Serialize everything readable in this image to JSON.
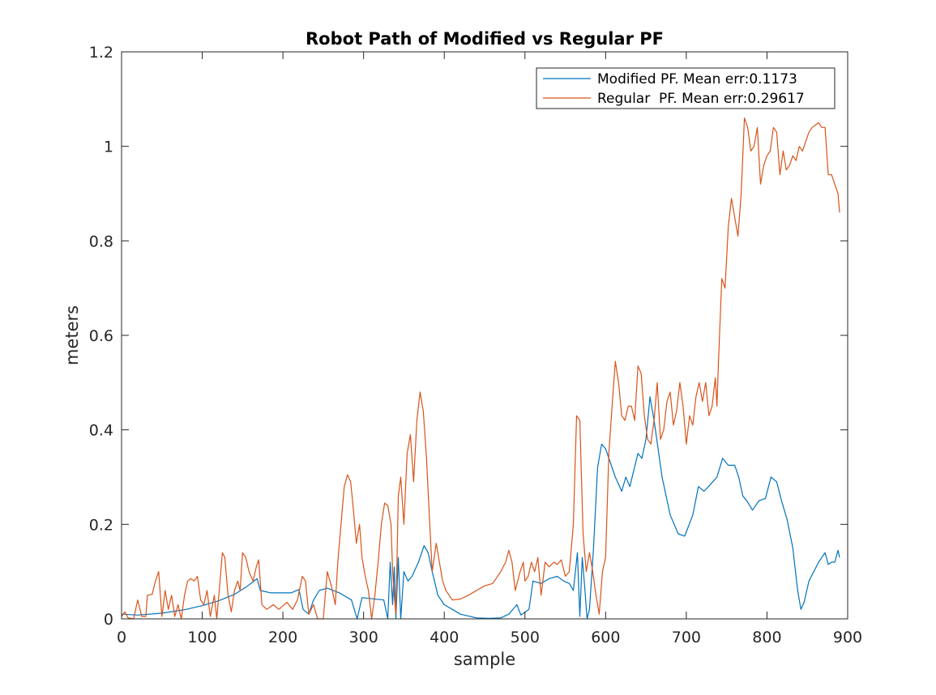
{
  "chart_data": {
    "type": "line",
    "title": "Robot Path of Modified vs Regular PF",
    "xlabel": "sample",
    "ylabel": "meters",
    "xlim": [
      0,
      900
    ],
    "ylim": [
      0,
      1.2
    ],
    "xticks": [
      0,
      100,
      200,
      300,
      400,
      500,
      600,
      700,
      800,
      900
    ],
    "yticks": [
      0,
      0.2,
      0.4,
      0.6,
      0.8,
      1,
      1.2
    ],
    "ytick_labels": [
      "0",
      "0.2",
      "0.4",
      "0.6",
      "0.8",
      "1",
      "1.2"
    ],
    "grid": false,
    "legend_position": "top-right",
    "series": [
      {
        "name": "Modified PF. Mean err:0.1173",
        "color": "#0072BD",
        "points": [
          [
            0,
            0.01
          ],
          [
            20,
            0.008
          ],
          [
            50,
            0.012
          ],
          [
            80,
            0.02
          ],
          [
            100,
            0.028
          ],
          [
            120,
            0.038
          ],
          [
            140,
            0.052
          ],
          [
            155,
            0.068
          ],
          [
            168,
            0.085
          ],
          [
            172,
            0.06
          ],
          [
            185,
            0.055
          ],
          [
            210,
            0.055
          ],
          [
            220,
            0.062
          ],
          [
            225,
            0.02
          ],
          [
            232,
            0.01
          ],
          [
            238,
            0.04
          ],
          [
            245,
            0.06
          ],
          [
            255,
            0.065
          ],
          [
            270,
            0.055
          ],
          [
            285,
            0.04
          ],
          [
            292,
            0.0
          ],
          [
            298,
            0.045
          ],
          [
            325,
            0.04
          ],
          [
            330,
            0.0
          ],
          [
            333,
            0.12
          ],
          [
            336,
            0.03
          ],
          [
            338,
            0.11
          ],
          [
            340,
            0.0
          ],
          [
            343,
            0.13
          ],
          [
            346,
            0.0
          ],
          [
            350,
            0.1
          ],
          [
            355,
            0.08
          ],
          [
            360,
            0.09
          ],
          [
            368,
            0.12
          ],
          [
            375,
            0.155
          ],
          [
            380,
            0.14
          ],
          [
            385,
            0.1
          ],
          [
            392,
            0.05
          ],
          [
            400,
            0.03
          ],
          [
            410,
            0.02
          ],
          [
            420,
            0.01
          ],
          [
            440,
            0.002
          ],
          [
            455,
            0.001
          ],
          [
            470,
            0.002
          ],
          [
            480,
            0.01
          ],
          [
            490,
            0.03
          ],
          [
            495,
            0.008
          ],
          [
            505,
            0.02
          ],
          [
            510,
            0.08
          ],
          [
            520,
            0.075
          ],
          [
            530,
            0.085
          ],
          [
            540,
            0.09
          ],
          [
            548,
            0.08
          ],
          [
            555,
            0.075
          ],
          [
            560,
            0.06
          ],
          [
            565,
            0.14
          ],
          [
            568,
            0.005
          ],
          [
            571,
            0.13
          ],
          [
            574,
            0.07
          ],
          [
            577,
            0.0
          ],
          [
            580,
            0.02
          ],
          [
            585,
            0.15
          ],
          [
            590,
            0.32
          ],
          [
            595,
            0.37
          ],
          [
            600,
            0.36
          ],
          [
            606,
            0.33
          ],
          [
            612,
            0.3
          ],
          [
            620,
            0.27
          ],
          [
            625,
            0.3
          ],
          [
            630,
            0.28
          ],
          [
            640,
            0.35
          ],
          [
            645,
            0.34
          ],
          [
            650,
            0.38
          ],
          [
            655,
            0.47
          ],
          [
            660,
            0.42
          ],
          [
            670,
            0.3
          ],
          [
            680,
            0.22
          ],
          [
            690,
            0.18
          ],
          [
            698,
            0.175
          ],
          [
            708,
            0.22
          ],
          [
            715,
            0.28
          ],
          [
            722,
            0.27
          ],
          [
            730,
            0.285
          ],
          [
            738,
            0.3
          ],
          [
            745,
            0.34
          ],
          [
            752,
            0.325
          ],
          [
            760,
            0.325
          ],
          [
            765,
            0.3
          ],
          [
            770,
            0.26
          ],
          [
            775,
            0.25
          ],
          [
            782,
            0.23
          ],
          [
            790,
            0.25
          ],
          [
            798,
            0.255
          ],
          [
            805,
            0.3
          ],
          [
            812,
            0.29
          ],
          [
            818,
            0.25
          ],
          [
            825,
            0.21
          ],
          [
            832,
            0.15
          ],
          [
            838,
            0.06
          ],
          [
            842,
            0.02
          ],
          [
            846,
            0.035
          ],
          [
            852,
            0.08
          ],
          [
            858,
            0.1
          ],
          [
            864,
            0.12
          ],
          [
            868,
            0.13
          ],
          [
            872,
            0.14
          ],
          [
            876,
            0.115
          ],
          [
            880,
            0.12
          ],
          [
            884,
            0.12
          ],
          [
            888,
            0.145
          ],
          [
            890,
            0.13
          ]
        ]
      },
      {
        "name": "Regular  PF. Mean err:0.29617",
        "color": "#D95319",
        "points": [
          [
            0,
            0.005
          ],
          [
            4,
            0.015
          ],
          [
            8,
            0.002
          ],
          [
            15,
            0.0
          ],
          [
            20,
            0.04
          ],
          [
            25,
            0.005
          ],
          [
            30,
            0.005
          ],
          [
            32,
            0.05
          ],
          [
            38,
            0.052
          ],
          [
            42,
            0.08
          ],
          [
            46,
            0.1
          ],
          [
            50,
            0.005
          ],
          [
            54,
            0.06
          ],
          [
            58,
            0.02
          ],
          [
            62,
            0.05
          ],
          [
            66,
            0.005
          ],
          [
            70,
            0.03
          ],
          [
            74,
            0.0
          ],
          [
            78,
            0.05
          ],
          [
            82,
            0.08
          ],
          [
            86,
            0.085
          ],
          [
            90,
            0.08
          ],
          [
            94,
            0.09
          ],
          [
            98,
            0.04
          ],
          [
            102,
            0.03
          ],
          [
            106,
            0.06
          ],
          [
            110,
            0.005
          ],
          [
            115,
            0.05
          ],
          [
            118,
            0.0
          ],
          [
            122,
            0.08
          ],
          [
            125,
            0.14
          ],
          [
            128,
            0.13
          ],
          [
            132,
            0.05
          ],
          [
            136,
            0.015
          ],
          [
            140,
            0.06
          ],
          [
            144,
            0.08
          ],
          [
            147,
            0.06
          ],
          [
            150,
            0.14
          ],
          [
            154,
            0.13
          ],
          [
            158,
            0.1
          ],
          [
            163,
            0.08
          ],
          [
            167,
            0.11
          ],
          [
            170,
            0.125
          ],
          [
            174,
            0.03
          ],
          [
            180,
            0.02
          ],
          [
            188,
            0.03
          ],
          [
            195,
            0.02
          ],
          [
            205,
            0.035
          ],
          [
            212,
            0.02
          ],
          [
            218,
            0.04
          ],
          [
            224,
            0.09
          ],
          [
            228,
            0.08
          ],
          [
            232,
            0.01
          ],
          [
            238,
            0.03
          ],
          [
            243,
            0.0
          ],
          [
            250,
            0.0
          ],
          [
            255,
            0.1
          ],
          [
            260,
            0.07
          ],
          [
            265,
            0.03
          ],
          [
            268,
            0.12
          ],
          [
            272,
            0.2
          ],
          [
            276,
            0.28
          ],
          [
            280,
            0.305
          ],
          [
            284,
            0.29
          ],
          [
            288,
            0.22
          ],
          [
            291,
            0.16
          ],
          [
            295,
            0.2
          ],
          [
            298,
            0.13
          ],
          [
            302,
            0.09
          ],
          [
            306,
            0.06
          ],
          [
            310,
            0.0
          ],
          [
            314,
            0.05
          ],
          [
            318,
            0.12
          ],
          [
            322,
            0.2
          ],
          [
            326,
            0.245
          ],
          [
            330,
            0.24
          ],
          [
            334,
            0.2
          ],
          [
            336,
            0.1
          ],
          [
            338,
            0.05
          ],
          [
            340,
            0.01
          ],
          [
            343,
            0.26
          ],
          [
            346,
            0.3
          ],
          [
            350,
            0.2
          ],
          [
            354,
            0.35
          ],
          [
            358,
            0.39
          ],
          [
            362,
            0.29
          ],
          [
            366,
            0.42
          ],
          [
            370,
            0.48
          ],
          [
            374,
            0.44
          ],
          [
            378,
            0.34
          ],
          [
            382,
            0.2
          ],
          [
            385,
            0.1
          ],
          [
            390,
            0.16
          ],
          [
            394,
            0.12
          ],
          [
            398,
            0.08
          ],
          [
            402,
            0.06
          ],
          [
            406,
            0.05
          ],
          [
            410,
            0.04
          ],
          [
            420,
            0.042
          ],
          [
            430,
            0.05
          ],
          [
            440,
            0.06
          ],
          [
            450,
            0.07
          ],
          [
            460,
            0.075
          ],
          [
            470,
            0.1
          ],
          [
            476,
            0.12
          ],
          [
            480,
            0.145
          ],
          [
            484,
            0.12
          ],
          [
            488,
            0.06
          ],
          [
            494,
            0.1
          ],
          [
            498,
            0.12
          ],
          [
            500,
            0.08
          ],
          [
            504,
            0.09
          ],
          [
            508,
            0.12
          ],
          [
            512,
            0.1
          ],
          [
            516,
            0.13
          ],
          [
            520,
            0.05
          ],
          [
            525,
            0.12
          ],
          [
            530,
            0.11
          ],
          [
            536,
            0.12
          ],
          [
            540,
            0.115
          ],
          [
            545,
            0.125
          ],
          [
            550,
            0.09
          ],
          [
            555,
            0.1
          ],
          [
            560,
            0.2
          ],
          [
            564,
            0.43
          ],
          [
            568,
            0.42
          ],
          [
            572,
            0.18
          ],
          [
            576,
            0.1
          ],
          [
            580,
            0.14
          ],
          [
            584,
            0.1
          ],
          [
            588,
            0.05
          ],
          [
            592,
            0.01
          ],
          [
            596,
            0.1
          ],
          [
            600,
            0.13
          ],
          [
            604,
            0.35
          ],
          [
            608,
            0.45
          ],
          [
            612,
            0.545
          ],
          [
            616,
            0.5
          ],
          [
            620,
            0.43
          ],
          [
            624,
            0.42
          ],
          [
            628,
            0.45
          ],
          [
            632,
            0.45
          ],
          [
            636,
            0.42
          ],
          [
            640,
            0.535
          ],
          [
            644,
            0.52
          ],
          [
            648,
            0.43
          ],
          [
            652,
            0.38
          ],
          [
            656,
            0.37
          ],
          [
            660,
            0.42
          ],
          [
            664,
            0.5
          ],
          [
            668,
            0.38
          ],
          [
            672,
            0.4
          ],
          [
            676,
            0.46
          ],
          [
            680,
            0.48
          ],
          [
            684,
            0.41
          ],
          [
            688,
            0.44
          ],
          [
            692,
            0.5
          ],
          [
            696,
            0.45
          ],
          [
            700,
            0.37
          ],
          [
            704,
            0.43
          ],
          [
            708,
            0.41
          ],
          [
            712,
            0.47
          ],
          [
            716,
            0.5
          ],
          [
            720,
            0.46
          ],
          [
            724,
            0.5
          ],
          [
            728,
            0.43
          ],
          [
            732,
            0.45
          ],
          [
            736,
            0.51
          ],
          [
            738,
            0.45
          ],
          [
            740,
            0.55
          ],
          [
            744,
            0.72
          ],
          [
            748,
            0.7
          ],
          [
            752,
            0.83
          ],
          [
            756,
            0.89
          ],
          [
            760,
            0.85
          ],
          [
            764,
            0.81
          ],
          [
            768,
            0.9
          ],
          [
            772,
            1.06
          ],
          [
            776,
            1.04
          ],
          [
            780,
            0.99
          ],
          [
            784,
            1.0
          ],
          [
            788,
            1.04
          ],
          [
            792,
            0.92
          ],
          [
            796,
            0.96
          ],
          [
            800,
            0.98
          ],
          [
            804,
            0.99
          ],
          [
            808,
            1.04
          ],
          [
            812,
            1.03
          ],
          [
            816,
            0.94
          ],
          [
            820,
            0.99
          ],
          [
            824,
            0.95
          ],
          [
            828,
            0.96
          ],
          [
            832,
            0.98
          ],
          [
            836,
            0.97
          ],
          [
            840,
            1.0
          ],
          [
            844,
            0.99
          ],
          [
            848,
            1.01
          ],
          [
            852,
            1.03
          ],
          [
            856,
            1.04
          ],
          [
            860,
            1.045
          ],
          [
            864,
            1.05
          ],
          [
            868,
            1.04
          ],
          [
            872,
            1.04
          ],
          [
            876,
            0.94
          ],
          [
            880,
            0.94
          ],
          [
            884,
            0.92
          ],
          [
            888,
            0.9
          ],
          [
            890,
            0.86
          ]
        ]
      }
    ]
  }
}
